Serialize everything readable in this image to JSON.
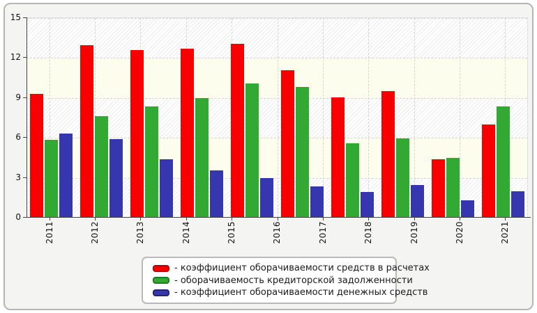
{
  "page": {
    "background_color": "#f4f4f2",
    "frame_border_color": "#b5b5b5"
  },
  "chart_data": {
    "type": "bar",
    "title": "",
    "xlabel": "",
    "ylabel": "",
    "x_labels": [
      "2011",
      "2012",
      "2013",
      "2014",
      "2015",
      "2016",
      "2017",
      "2018",
      "2019",
      "2020",
      "2021"
    ],
    "yticks": [
      "0",
      "3",
      "6",
      "9",
      "12",
      "15"
    ],
    "ylim": [
      0,
      15
    ],
    "bar_groups": 10,
    "grid": "dashed gray, horizontal at each ytick and vertical at each year tick",
    "plot_background": "alternating hatched and ivory horizontal bands every 3 units",
    "legend_position": "bottom-center",
    "series": [
      {
        "name": "- коэффициент оборачиваемости средств в расчетах",
        "color": "#f80000",
        "swatch_border": "#b40000",
        "values": [
          9.25,
          12.9,
          12.55,
          12.65,
          13.0,
          11.05,
          9.0,
          9.45,
          4.35,
          6.95
        ]
      },
      {
        "name": "- оборачиваемость кредиторской задолженности",
        "color": "#32a932",
        "swatch_border": "#1e7a1e",
        "values": [
          5.8,
          7.6,
          8.3,
          8.95,
          10.05,
          9.8,
          5.55,
          5.9,
          4.45,
          8.3
        ]
      },
      {
        "name": "- коэффициент оборачиваемости денежных средств",
        "color": "#3636ae",
        "swatch_border": "#232378",
        "values": [
          6.25,
          5.85,
          4.35,
          3.5,
          2.95,
          2.3,
          1.9,
          2.4,
          1.25,
          1.95
        ]
      }
    ]
  }
}
